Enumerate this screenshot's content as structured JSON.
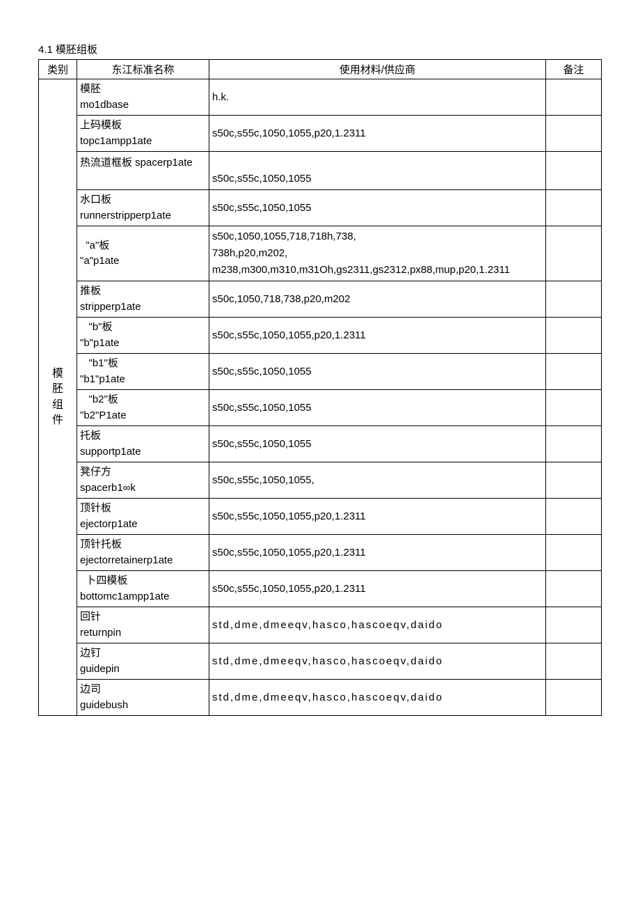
{
  "section_title": "4.1 模胚组板",
  "columns": {
    "category": "类别",
    "name": "东江标准名称",
    "material": "使用材料/供应商",
    "remark": "备注"
  },
  "category_label": "模 胚 组 件",
  "rows": [
    {
      "name_lines": [
        "模胚",
        "mo1dbase"
      ],
      "material_lines": [
        "h.k."
      ]
    },
    {
      "name_lines": [
        "上码模板",
        "topc1ampp1ate"
      ],
      "material_lines": [
        "s50c,s55c,1050,1055,p20,1.2311"
      ]
    },
    {
      "name_lines": [
        "热流道框板 spacerp1ate",
        " "
      ],
      "material_lines": [
        " ",
        "s50c,s55c,1050,1055"
      ]
    },
    {
      "name_lines": [
        "水口板",
        "runnerstripperp1ate"
      ],
      "material_lines": [
        "s50c,s55c,1050,1055"
      ]
    },
    {
      "name_lines": [
        "  \"a\"板",
        "\"a\"p1ate"
      ],
      "material_lines": [
        "s50c,1050,1055,718,718h,738,",
        "738h,p20,m202,",
        "m238,m300,m310,m31Oh,gs2311,gs2312,px88,mup,p20,1.2311"
      ]
    },
    {
      "name_lines": [
        "推板",
        "stripperp1ate"
      ],
      "material_lines": [
        "s50c,1050,718,738,p20,m202"
      ]
    },
    {
      "name_lines": [
        "   \"b\"板",
        "\"b\"p1ate"
      ],
      "material_lines": [
        "s50c,s55c,1050,1055,p20,1.2311"
      ]
    },
    {
      "name_lines": [
        "   \"b1\"板",
        "\"b1\"p1ate"
      ],
      "material_lines": [
        "s50c,s55c,1050,1055"
      ]
    },
    {
      "name_lines": [
        "   \"b2\"板",
        "\"b2\"P1ate"
      ],
      "material_lines": [
        "s50c,s55c,1050,1055"
      ]
    },
    {
      "name_lines": [
        "托板",
        "supportp1ate"
      ],
      "material_lines": [
        "s50c,s55c,1050,1055"
      ]
    },
    {
      "name_lines": [
        "凳仔方",
        "spacerb1∞k"
      ],
      "material_lines": [
        "s50c,s55c,1050,1055,"
      ]
    },
    {
      "name_lines": [
        "顶针板",
        "ejectorp1ate"
      ],
      "material_lines": [
        "s50c,s55c,1050,1055,p20,1.2311"
      ]
    },
    {
      "name_lines": [
        "顶针托板",
        "ejectorretainerp1ate"
      ],
      "material_lines": [
        "s50c,s55c,1050,1055,p20,1.2311"
      ]
    },
    {
      "name_lines": [
        "  卜四模板",
        "bottomc1ampp1ate"
      ],
      "material_lines": [
        "s50c,s55c,1050,1055,p20,1.2311"
      ]
    },
    {
      "name_lines": [
        "回针",
        "returnpin"
      ],
      "material_lines": [
        "std,dme,dmeeqv,hasco,hascoeqv,daido"
      ],
      "mat_loose": true
    },
    {
      "name_lines": [
        "边钉",
        "guidepin"
      ],
      "material_lines": [
        "std,dme,dmeeqv,hasco,hascoeqv,daido"
      ],
      "mat_loose": true
    },
    {
      "name_lines": [
        "边司",
        "guidebush"
      ],
      "material_lines": [
        "std,dme,dmeeqv,hasco,hascoeqv,daido"
      ],
      "mat_loose": true
    }
  ]
}
